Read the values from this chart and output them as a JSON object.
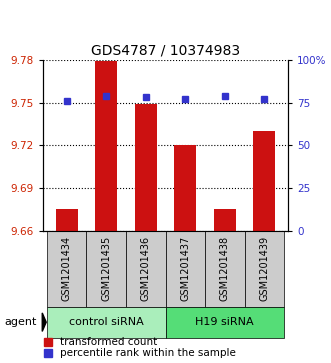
{
  "title": "GDS4787 / 10374983",
  "samples": [
    "GSM1201434",
    "GSM1201435",
    "GSM1201436",
    "GSM1201437",
    "GSM1201438",
    "GSM1201439"
  ],
  "bar_values": [
    9.675,
    9.779,
    9.749,
    9.72,
    9.675,
    9.73
  ],
  "percentile_values": [
    76,
    79,
    78,
    77,
    79,
    77
  ],
  "y_min": 9.66,
  "y_max": 9.78,
  "y_ticks": [
    9.66,
    9.69,
    9.72,
    9.75,
    9.78
  ],
  "y2_ticks": [
    0,
    25,
    50,
    75,
    100
  ],
  "bar_color": "#cc1111",
  "dot_color": "#3333cc",
  "bar_bottom": 9.66,
  "group_labels": [
    "control siRNA",
    "H19 siRNA"
  ],
  "group_colors": [
    "#aaeebb",
    "#55dd77"
  ],
  "group_ranges": [
    [
      0,
      3
    ],
    [
      3,
      6
    ]
  ],
  "agent_label": "agent",
  "legend_bar_label": "transformed count",
  "legend_dot_label": "percentile rank within the sample",
  "left_tick_color": "#cc2200",
  "right_tick_color": "#3333cc",
  "title_fontsize": 10,
  "tick_fontsize": 7.5,
  "label_fontsize": 8,
  "xticklabel_bg": "#cccccc",
  "bar_width": 0.55
}
